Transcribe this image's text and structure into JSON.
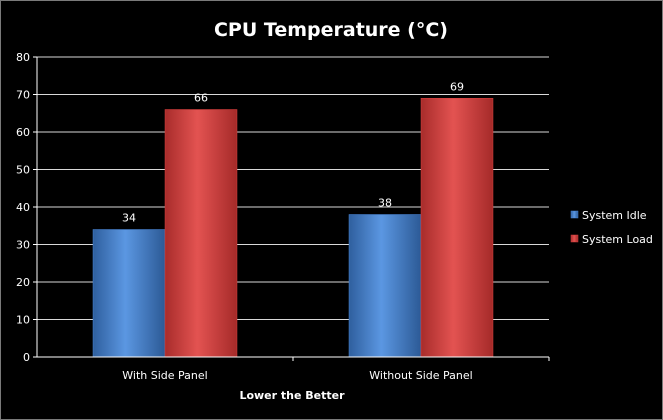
{
  "chart_data": {
    "type": "bar",
    "title": "CPU Temperature (°C)",
    "xlabel": "Lower the Better",
    "ylabel": "",
    "categories": [
      "With Side Panel",
      "Without Side Panel"
    ],
    "series": [
      {
        "name": "System Idle",
        "values": [
          34,
          38
        ],
        "color": "#4a86d8"
      },
      {
        "name": "System Load",
        "values": [
          66,
          69
        ],
        "color": "#d9403f"
      }
    ],
    "ylim": [
      0,
      80
    ],
    "yticks": [
      "0",
      "10",
      "20",
      "30",
      "40",
      "50",
      "60",
      "70",
      "80"
    ],
    "data_labels": [
      [
        "34",
        "38"
      ],
      [
        "66",
        "69"
      ]
    ],
    "grid": true,
    "legend_position": "right",
    "background_color": "#000000",
    "grid_color": "#ffffff"
  }
}
